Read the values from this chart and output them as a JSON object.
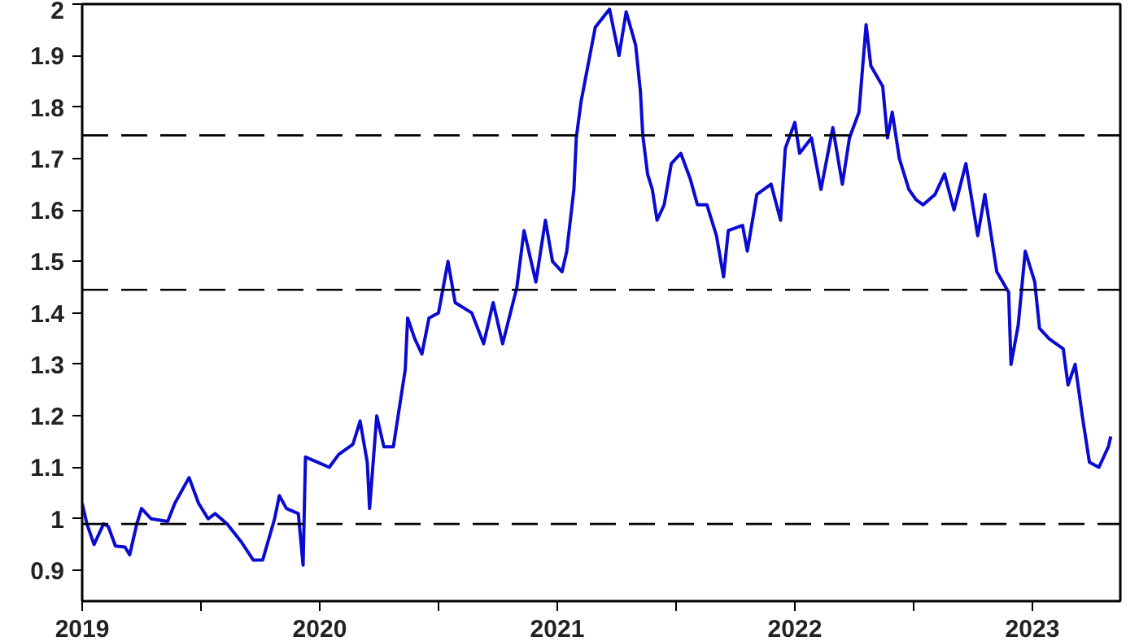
{
  "chart_data": {
    "type": "line",
    "x": [
      2019.0,
      2019.02,
      2019.05,
      2019.07,
      2019.09,
      2019.11,
      2019.14,
      2019.18,
      2019.2,
      2019.23,
      2019.25,
      2019.29,
      2019.36,
      2019.39,
      2019.45,
      2019.49,
      2019.53,
      2019.56,
      2019.61,
      2019.67,
      2019.72,
      2019.76,
      2019.81,
      2019.83,
      2019.86,
      2019.91,
      2019.93,
      2019.94,
      2019.99,
      2020.04,
      2020.08,
      2020.14,
      2020.17,
      2020.2,
      2020.21,
      2020.24,
      2020.27,
      2020.31,
      2020.33,
      2020.36,
      2020.37,
      2020.4,
      2020.43,
      2020.46,
      2020.5,
      2020.54,
      2020.57,
      2020.64,
      2020.69,
      2020.73,
      2020.77,
      2020.83,
      2020.86,
      2020.91,
      2020.95,
      2020.98,
      2021.02,
      2021.04,
      2021.07,
      2021.08,
      2021.1,
      2021.16,
      2021.22,
      2021.26,
      2021.29,
      2021.33,
      2021.35,
      2021.36,
      2021.38,
      2021.4,
      2021.42,
      2021.45,
      2021.48,
      2021.52,
      2021.56,
      2021.59,
      2021.63,
      2021.67,
      2021.7,
      2021.72,
      2021.78,
      2021.8,
      2021.84,
      2021.9,
      2021.94,
      2021.96,
      2022.0,
      2022.02,
      2022.07,
      2022.11,
      2022.16,
      2022.2,
      2022.23,
      2022.27,
      2022.3,
      2022.32,
      2022.37,
      2022.39,
      2022.41,
      2022.44,
      2022.48,
      2022.51,
      2022.54,
      2022.59,
      2022.63,
      2022.67,
      2022.72,
      2022.77,
      2022.8,
      2022.85,
      2022.9,
      2022.91,
      2022.94,
      2022.97,
      2023.01,
      2023.03,
      2023.07,
      2023.13,
      2023.15,
      2023.18,
      2023.21,
      2023.24,
      2023.28,
      2023.32,
      2023.33
    ],
    "series": [
      {
        "color": "#0a0ad2",
        "values": [
          1.03,
          0.99,
          0.95,
          0.97,
          0.99,
          0.985,
          0.947,
          0.945,
          0.93,
          0.99,
          1.02,
          1.0,
          0.995,
          1.03,
          1.08,
          1.03,
          1.0,
          1.01,
          0.99,
          0.955,
          0.92,
          0.92,
          1.0,
          1.045,
          1.02,
          1.01,
          0.91,
          1.12,
          1.11,
          1.1,
          1.125,
          1.145,
          1.19,
          1.11,
          1.02,
          1.2,
          1.14,
          1.14,
          1.2,
          1.29,
          1.39,
          1.35,
          1.32,
          1.39,
          1.4,
          1.5,
          1.42,
          1.4,
          1.34,
          1.42,
          1.34,
          1.45,
          1.56,
          1.46,
          1.58,
          1.5,
          1.48,
          1.52,
          1.64,
          1.74,
          1.81,
          1.955,
          1.99,
          1.9,
          1.985,
          1.92,
          1.83,
          1.745,
          1.67,
          1.64,
          1.58,
          1.61,
          1.69,
          1.71,
          1.66,
          1.61,
          1.61,
          1.55,
          1.47,
          1.56,
          1.57,
          1.52,
          1.63,
          1.65,
          1.58,
          1.72,
          1.77,
          1.71,
          1.74,
          1.64,
          1.76,
          1.65,
          1.74,
          1.79,
          1.96,
          1.88,
          1.84,
          1.74,
          1.79,
          1.7,
          1.64,
          1.62,
          1.61,
          1.63,
          1.67,
          1.6,
          1.69,
          1.55,
          1.63,
          1.48,
          1.44,
          1.3,
          1.375,
          1.52,
          1.46,
          1.37,
          1.35,
          1.33,
          1.26,
          1.3,
          1.2,
          1.11,
          1.1,
          1.14,
          1.16
        ]
      }
    ],
    "xlim": [
      2019.0,
      2023.37
    ],
    "xticks": [
      {
        "value": 2019,
        "label": "2019"
      },
      {
        "value": 2019.5,
        "label": null
      },
      {
        "value": 2020,
        "label": "2020"
      },
      {
        "value": 2020.5,
        "label": null
      },
      {
        "value": 2021,
        "label": "2021"
      },
      {
        "value": 2021.5,
        "label": null
      },
      {
        "value": 2022,
        "label": "2022"
      },
      {
        "value": 2022.5,
        "label": null
      },
      {
        "value": 2023,
        "label": "2023"
      }
    ],
    "ylim": [
      0.84,
      2.0
    ],
    "yticks": [
      0.9,
      1,
      1.1,
      1.2,
      1.3,
      1.4,
      1.5,
      1.6,
      1.7,
      1.8,
      1.9,
      2
    ],
    "ref_lines": [
      {
        "axis": "y",
        "value": 1.745,
        "color": "#000000",
        "line_style": "dashed"
      },
      {
        "axis": "y",
        "value": 1.445,
        "color": "#000000",
        "line_style": "dashed"
      },
      {
        "axis": "y",
        "value": 0.99,
        "color": "#000000",
        "line_style": "dashed"
      }
    ],
    "grid": false
  }
}
